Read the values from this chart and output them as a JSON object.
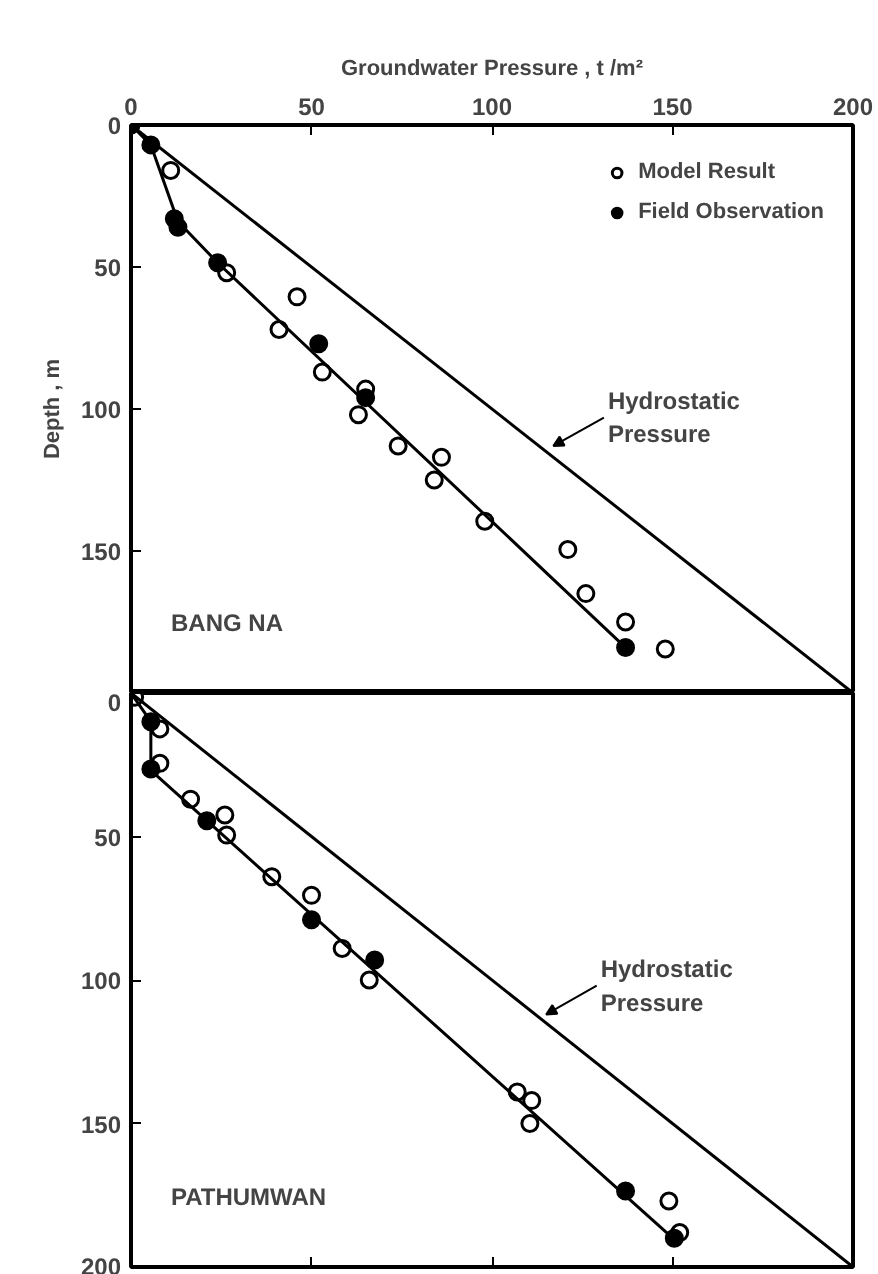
{
  "chart_data": [
    {
      "type": "scatter",
      "xlabel": "Groundwater Pressure , t /m²",
      "ylabel": "Depth , m",
      "xlim": [
        0,
        200
      ],
      "xticks": [
        0,
        50,
        100,
        150,
        200
      ],
      "ylim": [
        200,
        0
      ],
      "yticks": [
        0,
        50,
        100,
        150
      ],
      "grid": false,
      "legend": "top right",
      "annotations": [
        "BANG NA",
        {
          "text": "Hydrostatic\nPressure",
          "x": 117,
          "y": 113
        }
      ],
      "series": [
        {
          "name": "Model Result",
          "marker": "circle",
          "color": "#ffffff",
          "x": [
            11,
            26.5,
            46,
            41,
            53,
            65,
            63,
            74,
            86,
            84,
            98,
            121,
            126,
            137,
            148
          ],
          "values": [
            16,
            52,
            60.5,
            72,
            87,
            93,
            102,
            113,
            117,
            125,
            139.5,
            149.5,
            165,
            175,
            184.5
          ]
        },
        {
          "name": "Field Observation",
          "marker": "circle",
          "color": "#000000",
          "x": [
            0,
            5.5,
            12,
            13,
            24,
            52,
            65,
            137
          ],
          "values": [
            0,
            7,
            33,
            36,
            48.5,
            77,
            96,
            184
          ]
        },
        {
          "type": "line",
          "line_style": "solid",
          "color": "#000000",
          "x": [
            0,
            5.5,
            13,
            24,
            137
          ],
          "values": [
            0,
            7,
            34,
            48.5,
            184
          ]
        },
        {
          "type": "line",
          "line_style": "solid",
          "color": "#000000",
          "x": [
            0,
            200
          ],
          "values": [
            0,
            200
          ]
        }
      ]
    },
    {
      "type": "scatter",
      "xlim": [
        0,
        200
      ],
      "xticks": [
        0,
        50,
        100,
        150,
        200
      ],
      "ylim": [
        200,
        0
      ],
      "yticks": [
        0,
        50,
        100,
        150,
        200
      ],
      "grid": false,
      "tick_labels": "y",
      "annotations": [
        "PATHUMWAN",
        {
          "text": "Hydrostatic\nPressure",
          "x": 115,
          "y": 112
        }
      ],
      "series": [
        {
          "marker": "circle",
          "color": "#ffffff",
          "x": [
            1,
            8,
            8,
            16.5,
            26,
            26.5,
            39,
            50,
            58.5,
            66,
            107,
            111,
            110.5,
            149,
            152
          ],
          "values": [
            1.5,
            12.5,
            24.5,
            37,
            42.5,
            49.5,
            64,
            70.5,
            89,
            100,
            139,
            142,
            150,
            177,
            188
          ]
        },
        {
          "marker": "circle",
          "color": "#000000",
          "x": [
            5.5,
            5.5,
            21,
            50,
            67.5,
            137,
            150.5
          ],
          "values": [
            10,
            26.5,
            44.5,
            79,
            93,
            173.5,
            190
          ]
        },
        {
          "type": "line",
          "line_style": "solid",
          "color": "#000000",
          "x": [
            0,
            5.5,
            5.5,
            151
          ],
          "values": [
            0,
            10,
            27,
            191
          ]
        },
        {
          "type": "line",
          "line_style": "solid",
          "color": "#000000",
          "x": [
            0,
            200
          ],
          "values": [
            0,
            200
          ]
        }
      ]
    }
  ]
}
